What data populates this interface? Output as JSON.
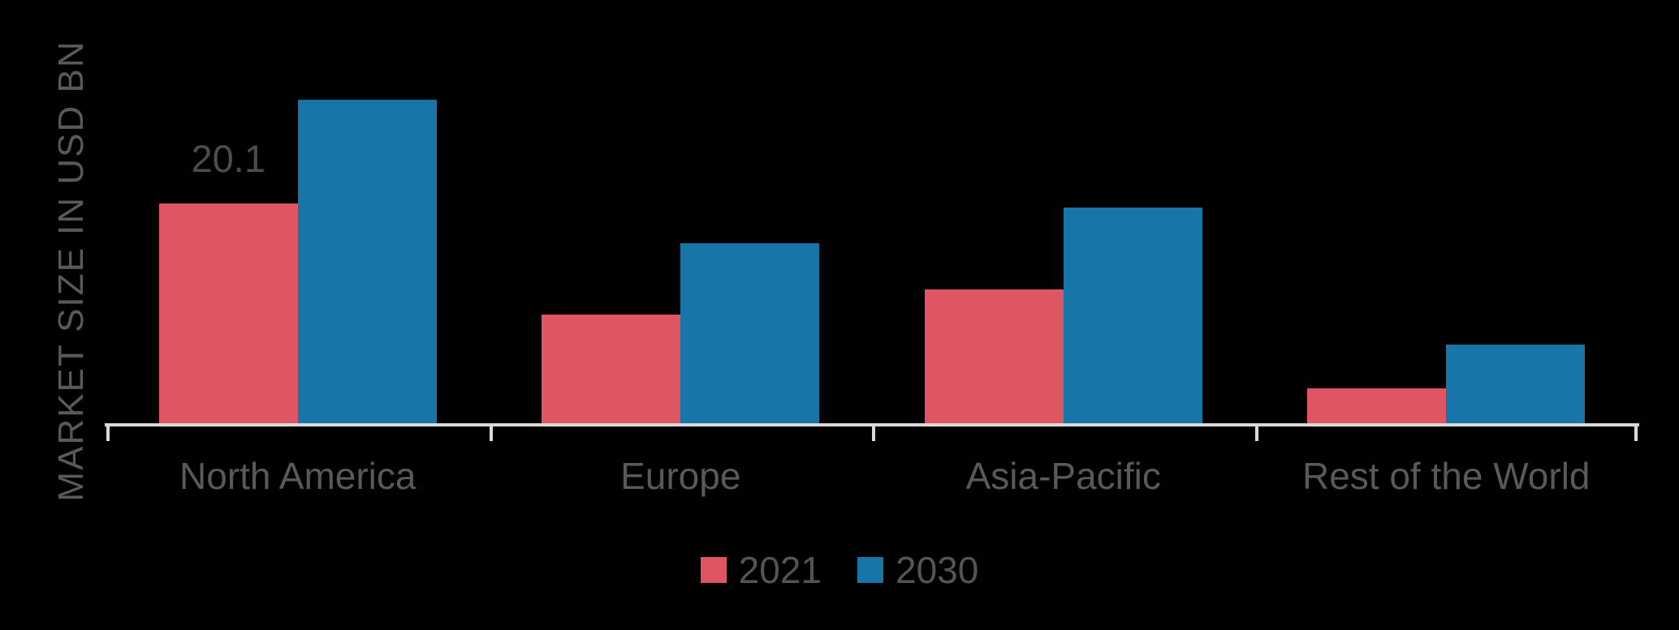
{
  "chart_data": {
    "type": "bar",
    "title": "",
    "ylabel": "MARKET SIZE IN USD BN",
    "xlabel": "",
    "categories": [
      "North America",
      "Europe",
      "Asia-Pacific",
      "Rest of the World"
    ],
    "series": [
      {
        "name": "2021",
        "color": "#e05564",
        "values": [
          20.1,
          10.0,
          12.3,
          3.3
        ]
      },
      {
        "name": "2030",
        "color": "#1875a8",
        "values": [
          29.5,
          16.5,
          19.7,
          7.3
        ]
      }
    ],
    "shown_data_labels": [
      {
        "category": "North America",
        "series": "2021",
        "text": "20.1"
      }
    ],
    "ylim": [
      0,
      30
    ],
    "grid": false,
    "y_axis_ticks_visible": false,
    "legend_position": "bottom",
    "colors": {
      "background": "#000000",
      "axis_line": "#d9d9d9",
      "category_text": "#595959",
      "data_label_text": "#4d4d4d",
      "y_axis_label_text": "#595959",
      "legend_text": "#545454"
    }
  }
}
